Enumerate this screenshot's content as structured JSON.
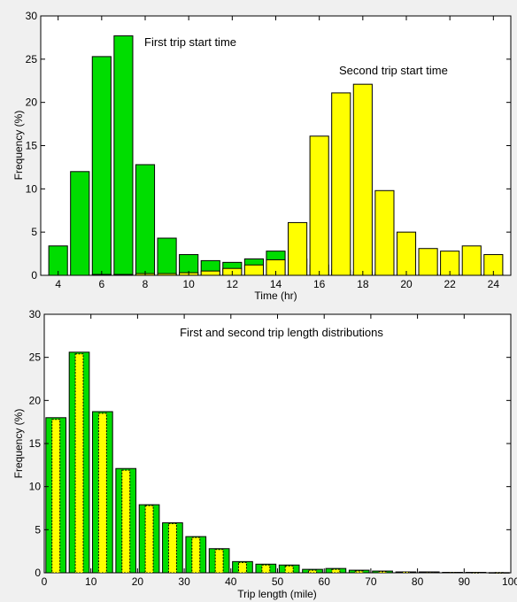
{
  "chart_data": [
    {
      "type": "bar",
      "xlabel": "Time (hr)",
      "ylabel": "Frequency (%)",
      "xlim": [
        3.2,
        24.8
      ],
      "ylim": [
        0,
        30
      ],
      "xticks": [
        4,
        6,
        8,
        10,
        12,
        14,
        16,
        18,
        20,
        22,
        24
      ],
      "yticks": [
        0,
        5,
        10,
        15,
        20,
        25,
        30
      ],
      "grid": false,
      "annotations": [
        "First trip start time",
        "Second trip start time"
      ],
      "x": [
        4,
        5,
        6,
        7,
        8,
        9,
        10,
        11,
        12,
        13,
        14,
        15,
        16,
        17,
        18,
        19,
        20,
        21,
        22,
        23,
        24
      ],
      "series": [
        {
          "color": "#00dd00",
          "values": [
            3.4,
            12.0,
            25.3,
            27.7,
            12.8,
            4.3,
            2.4,
            1.7,
            1.5,
            1.9,
            2.8,
            1.9,
            1.2,
            0.6,
            0.4,
            0.3,
            0.2,
            0.2,
            0.2,
            0.1,
            0.1
          ]
        },
        {
          "color": "#ffff00",
          "values": [
            0,
            0,
            0.1,
            0.1,
            0.2,
            0.2,
            0.3,
            0.5,
            0.8,
            1.2,
            1.8,
            6.1,
            16.1,
            21.1,
            22.1,
            9.8,
            5.0,
            3.1,
            2.8,
            3.4,
            2.4
          ]
        }
      ]
    },
    {
      "type": "bar",
      "title": "First and second trip length distributions",
      "xlabel": "Trip length (mile)",
      "ylabel": "Frequency (%)",
      "xlim": [
        0,
        100
      ],
      "ylim": [
        0,
        30
      ],
      "xticks": [
        0,
        10,
        20,
        30,
        40,
        50,
        60,
        70,
        80,
        90,
        100
      ],
      "yticks": [
        0,
        5,
        10,
        15,
        20,
        25,
        30
      ],
      "grid": false,
      "x": [
        2.5,
        7.5,
        12.5,
        17.5,
        22.5,
        27.5,
        32.5,
        37.5,
        42.5,
        47.5,
        52.5,
        57.5,
        62.5,
        67.5,
        72.5,
        77.5,
        82.5,
        87.5,
        92.5,
        97.5
      ],
      "series": [
        {
          "color": "#00dd00",
          "values": [
            18.0,
            25.6,
            18.7,
            12.1,
            7.9,
            5.8,
            4.2,
            2.8,
            1.3,
            1.0,
            0.9,
            0.4,
            0.5,
            0.3,
            0.2,
            0.1,
            0.1,
            0.05,
            0.05,
            0.02
          ]
        },
        {
          "color": "#ffff00",
          "values": [
            17.8,
            25.4,
            18.5,
            11.9,
            7.8,
            5.7,
            4.1,
            2.7,
            1.2,
            0.9,
            0.8,
            0.3,
            0.4,
            0.2,
            0.15,
            0.1,
            0.05,
            0.05,
            0.02,
            0.02
          ]
        }
      ]
    }
  ]
}
